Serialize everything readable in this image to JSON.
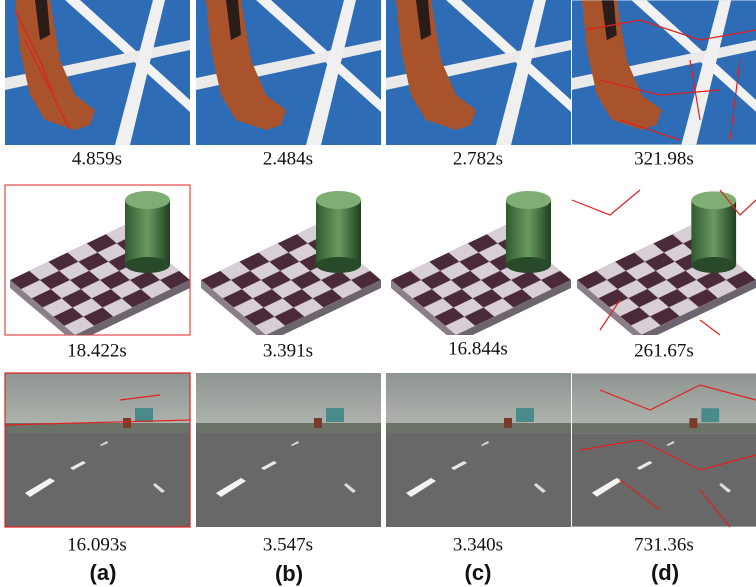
{
  "rows": [
    {
      "times": [
        "4.859s",
        "2.484s",
        "2.782s",
        "321.98s"
      ]
    },
    {
      "times": [
        "18.422s",
        "3.391s",
        "16.844s",
        "261.67s"
      ]
    },
    {
      "times": [
        "16.093s",
        "3.547s",
        "3.340s",
        "731.36s"
      ]
    }
  ],
  "columns": [
    "(a)",
    "(b)",
    "(c)",
    "(d)"
  ]
}
